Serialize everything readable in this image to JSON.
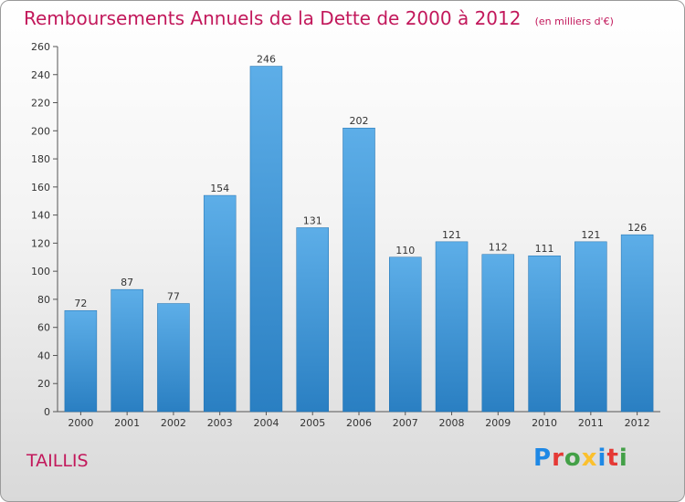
{
  "title": "Remboursements Annuels de la Dette de 2000 à 2012",
  "subtitle": "(en milliers d'€)",
  "commune": "TAILLIS",
  "logo": {
    "letters": [
      "P",
      "r",
      "o",
      "x",
      "i",
      "t",
      "i"
    ],
    "colors": [
      "#1e88e5",
      "#e53935",
      "#43a047",
      "#fbc02d",
      "#1e88e5",
      "#e53935",
      "#43a047"
    ]
  },
  "colors": {
    "bar_light": "#5daee8",
    "bar_dark": "#2a7fc2",
    "title": "#c2185b"
  },
  "chart_data": {
    "type": "bar",
    "title": "Remboursements Annuels de la Dette de 2000 à 2012",
    "subtitle": "(en milliers d'€)",
    "categories": [
      "2000",
      "2001",
      "2002",
      "2003",
      "2004",
      "2005",
      "2006",
      "2007",
      "2008",
      "2009",
      "2010",
      "2011",
      "2012"
    ],
    "values": [
      72,
      87,
      77,
      154,
      246,
      131,
      202,
      110,
      121,
      112,
      111,
      121,
      126
    ],
    "ylim": [
      0,
      260
    ],
    "yticks": [
      0,
      20,
      40,
      60,
      80,
      100,
      120,
      140,
      160,
      180,
      200,
      220,
      240,
      260
    ],
    "grid": false,
    "data_labels": true
  }
}
